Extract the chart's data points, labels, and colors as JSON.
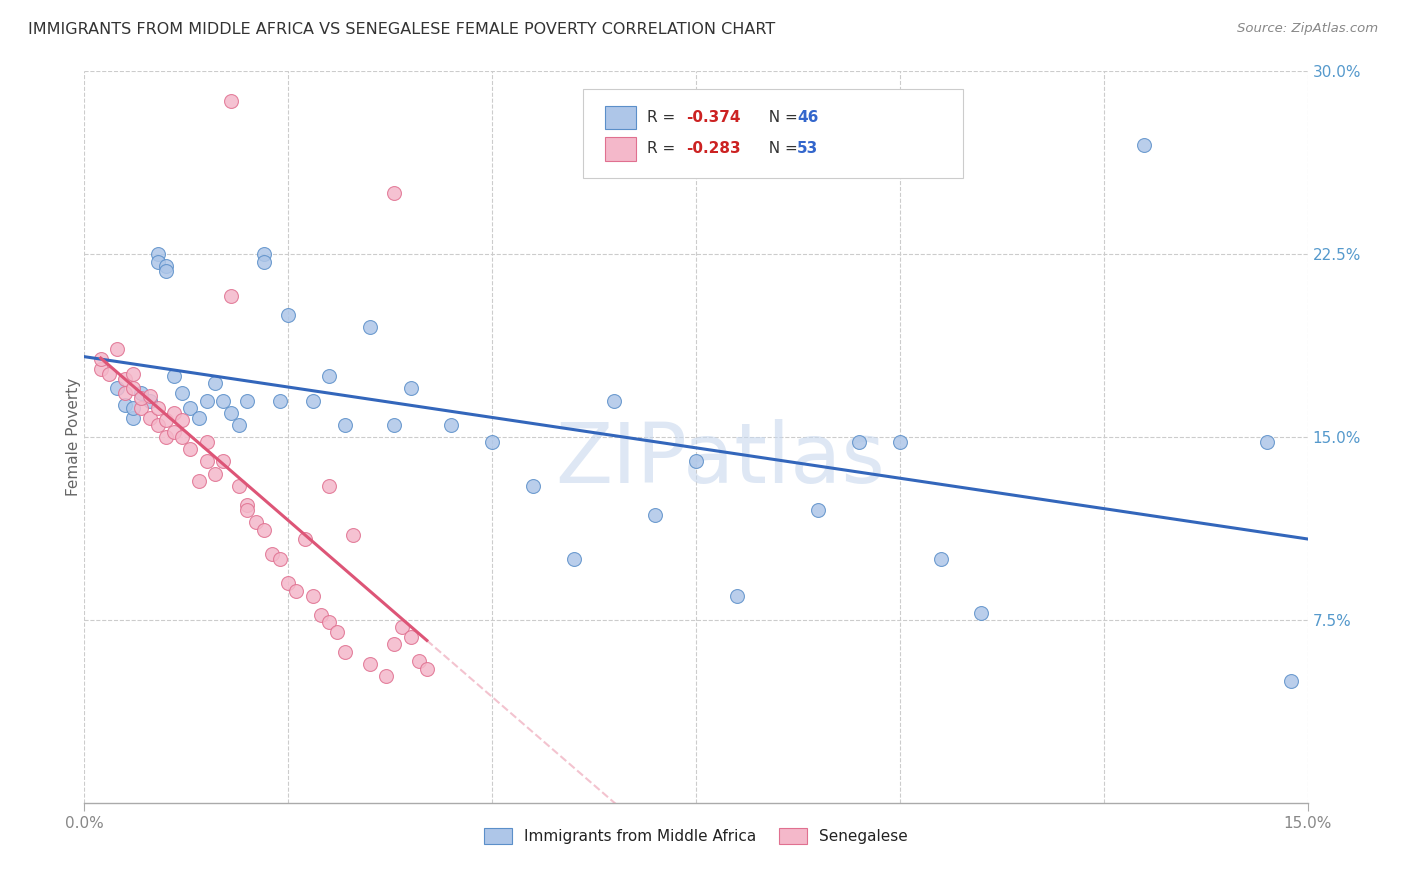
{
  "title": "IMMIGRANTS FROM MIDDLE AFRICA VS SENEGALESE FEMALE POVERTY CORRELATION CHART",
  "source": "Source: ZipAtlas.com",
  "ylabel": "Female Poverty",
  "xlim": [
    0,
    0.15
  ],
  "ylim": [
    0,
    0.3
  ],
  "yticks": [
    0.075,
    0.15,
    0.225,
    0.3
  ],
  "ytick_labels": [
    "7.5%",
    "15.0%",
    "22.5%",
    "30.0%"
  ],
  "xtick_labels_shown": [
    "0.0%",
    "15.0%"
  ],
  "xticks_shown": [
    0.0,
    0.15
  ],
  "background_color": "#ffffff",
  "watermark_text": "ZIPatlas",
  "color_blue": "#aec6e8",
  "color_pink": "#f4b8ca",
  "edge_blue": "#5b8fc9",
  "edge_pink": "#e07090",
  "trend_blue_color": "#3366bb",
  "trend_pink_color": "#dd5577",
  "legend_r1": "-0.374",
  "legend_n1": "46",
  "legend_r2": "-0.283",
  "legend_n2": "53",
  "blue_x": [
    0.004,
    0.005,
    0.006,
    0.006,
    0.007,
    0.008,
    0.009,
    0.009,
    0.01,
    0.01,
    0.011,
    0.012,
    0.013,
    0.014,
    0.015,
    0.016,
    0.017,
    0.018,
    0.019,
    0.02,
    0.022,
    0.022,
    0.024,
    0.025,
    0.028,
    0.03,
    0.032,
    0.035,
    0.038,
    0.04,
    0.045,
    0.05,
    0.055,
    0.06,
    0.065,
    0.07,
    0.075,
    0.08,
    0.09,
    0.095,
    0.1,
    0.105,
    0.11,
    0.13,
    0.145,
    0.148
  ],
  "blue_y": [
    0.17,
    0.163,
    0.158,
    0.162,
    0.168,
    0.165,
    0.225,
    0.222,
    0.22,
    0.218,
    0.175,
    0.168,
    0.162,
    0.158,
    0.165,
    0.172,
    0.165,
    0.16,
    0.155,
    0.165,
    0.225,
    0.222,
    0.165,
    0.2,
    0.165,
    0.175,
    0.155,
    0.195,
    0.155,
    0.17,
    0.155,
    0.148,
    0.13,
    0.1,
    0.165,
    0.118,
    0.14,
    0.085,
    0.12,
    0.148,
    0.148,
    0.1,
    0.078,
    0.27,
    0.148,
    0.05
  ],
  "pink_x": [
    0.002,
    0.002,
    0.003,
    0.004,
    0.005,
    0.005,
    0.006,
    0.006,
    0.007,
    0.007,
    0.008,
    0.008,
    0.009,
    0.009,
    0.01,
    0.01,
    0.011,
    0.011,
    0.012,
    0.012,
    0.013,
    0.014,
    0.015,
    0.015,
    0.016,
    0.017,
    0.018,
    0.019,
    0.02,
    0.02,
    0.021,
    0.022,
    0.023,
    0.024,
    0.025,
    0.026,
    0.027,
    0.028,
    0.029,
    0.03,
    0.031,
    0.032,
    0.033,
    0.035,
    0.037,
    0.038,
    0.039,
    0.04,
    0.041,
    0.042,
    0.018,
    0.03,
    0.038
  ],
  "pink_y": [
    0.178,
    0.182,
    0.176,
    0.186,
    0.168,
    0.174,
    0.17,
    0.176,
    0.162,
    0.166,
    0.158,
    0.167,
    0.155,
    0.162,
    0.15,
    0.157,
    0.16,
    0.152,
    0.15,
    0.157,
    0.145,
    0.132,
    0.14,
    0.148,
    0.135,
    0.14,
    0.288,
    0.13,
    0.122,
    0.12,
    0.115,
    0.112,
    0.102,
    0.1,
    0.09,
    0.087,
    0.108,
    0.085,
    0.077,
    0.074,
    0.07,
    0.062,
    0.11,
    0.057,
    0.052,
    0.25,
    0.072,
    0.068,
    0.058,
    0.055,
    0.208,
    0.13,
    0.065
  ]
}
